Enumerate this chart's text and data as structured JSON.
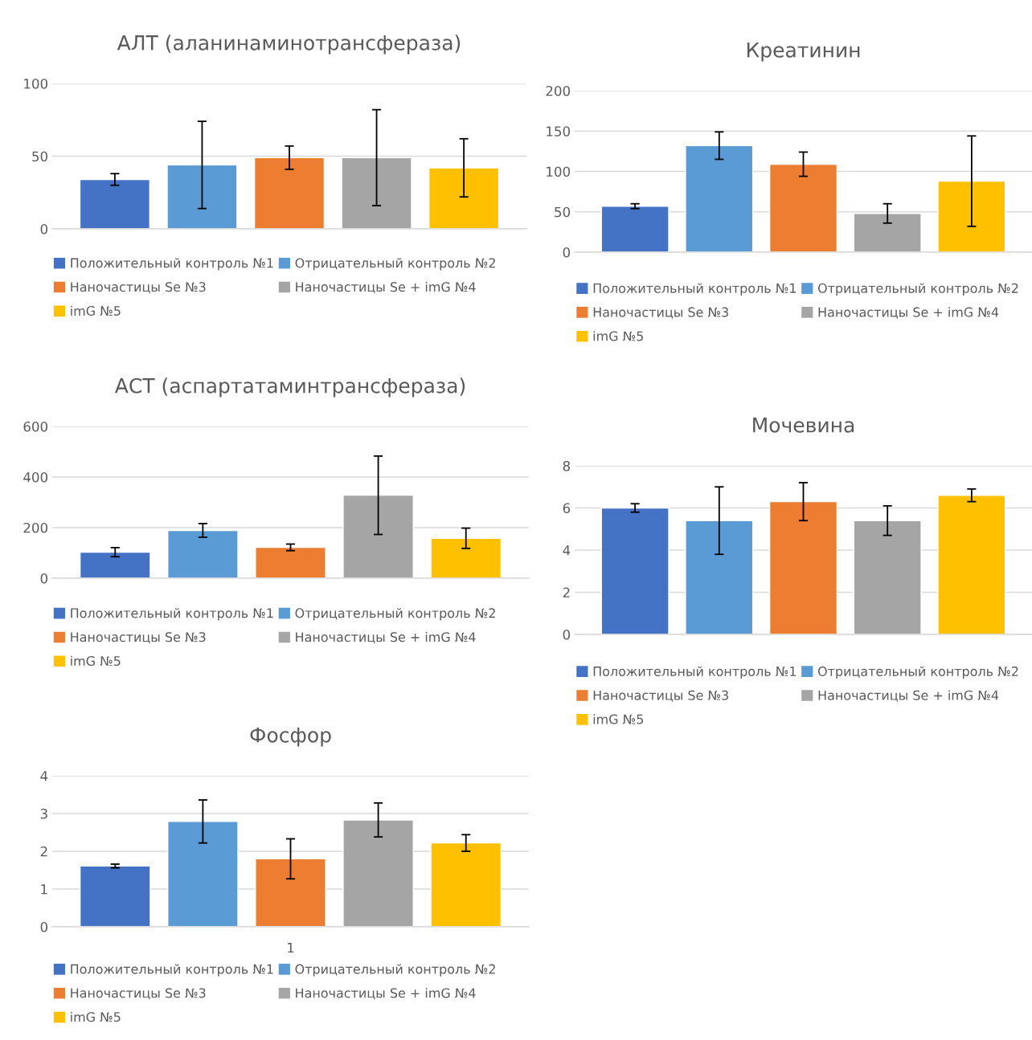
{
  "chart_data": [
    {
      "type": "bar",
      "title": "АЛТ (аланинаминотрансфераза)",
      "categories": [
        null
      ],
      "ylim": [
        0,
        100
      ],
      "yticks": [
        0,
        50,
        100
      ],
      "grid": "y",
      "legend": "bottom",
      "series": [
        {
          "name": "Положительный контроль №1",
          "color": "#4472c4",
          "values": [
            34
          ],
          "errors": [
            4
          ]
        },
        {
          "name": "Отрицательный контроль №2",
          "color": "#5b9bd5",
          "values": [
            44
          ],
          "errors": [
            30
          ]
        },
        {
          "name": "Наночастицы Se №3",
          "color": "#ed7d31",
          "values": [
            49
          ],
          "errors": [
            8
          ]
        },
        {
          "name": "Наночастицы Se + imG №4",
          "color": "#a5a5a5",
          "values": [
            49
          ],
          "errors": [
            33
          ]
        },
        {
          "name": "imG №5",
          "color": "#ffc000",
          "values": [
            42
          ],
          "errors": [
            20
          ]
        }
      ]
    },
    {
      "type": "bar",
      "title": "Креатинин",
      "categories": [
        null
      ],
      "ylim": [
        0,
        200
      ],
      "yticks": [
        0,
        50,
        100,
        150,
        200
      ],
      "grid": "y",
      "legend": "bottom",
      "series": [
        {
          "name": "Положительный контроль №1",
          "color": "#4472c4",
          "values": [
            57
          ],
          "errors": [
            3
          ]
        },
        {
          "name": "Отрицательный контроль №2",
          "color": "#5b9bd5",
          "values": [
            132
          ],
          "errors": [
            17
          ]
        },
        {
          "name": "Наночастицы Se №3",
          "color": "#ed7d31",
          "values": [
            109
          ],
          "errors": [
            15
          ]
        },
        {
          "name": "Наночастицы Se + imG №4",
          "color": "#a5a5a5",
          "values": [
            48
          ],
          "errors": [
            12
          ]
        },
        {
          "name": "imG №5",
          "color": "#ffc000",
          "values": [
            88
          ],
          "errors": [
            56
          ]
        }
      ]
    },
    {
      "type": "bar",
      "title": "АСТ (аспартатаминтрансфераза)",
      "categories": [
        null
      ],
      "ylim": [
        0,
        600
      ],
      "yticks": [
        0,
        200,
        400,
        600
      ],
      "grid": "y",
      "legend": "bottom",
      "series": [
        {
          "name": "Положительный контроль №1",
          "color": "#4472c4",
          "values": [
            103
          ],
          "errors": [
            18
          ]
        },
        {
          "name": "Отрицательный контроль №2",
          "color": "#5b9bd5",
          "values": [
            189
          ],
          "errors": [
            27
          ]
        },
        {
          "name": "Наночастицы Se №3",
          "color": "#ed7d31",
          "values": [
            122
          ],
          "errors": [
            13
          ]
        },
        {
          "name": "Наночастицы Se + imG №4",
          "color": "#a5a5a5",
          "values": [
            328
          ],
          "errors": [
            155
          ]
        },
        {
          "name": "imG №5",
          "color": "#ffc000",
          "values": [
            158
          ],
          "errors": [
            40
          ]
        }
      ]
    },
    {
      "type": "bar",
      "title": "Мочевина",
      "categories": [
        null
      ],
      "ylim": [
        0,
        8
      ],
      "yticks": [
        0,
        2,
        4,
        6,
        8
      ],
      "grid": "y",
      "legend": "bottom",
      "series": [
        {
          "name": "Положительный контроль №1",
          "color": "#4472c4",
          "values": [
            6.0
          ],
          "errors": [
            0.2
          ]
        },
        {
          "name": "Отрицательный контроль №2",
          "color": "#5b9bd5",
          "values": [
            5.4
          ],
          "errors": [
            1.6
          ]
        },
        {
          "name": "Наночастицы Se №3",
          "color": "#ed7d31",
          "values": [
            6.3
          ],
          "errors": [
            0.9
          ]
        },
        {
          "name": "Наночастицы Se + imG №4",
          "color": "#a5a5a5",
          "values": [
            5.4
          ],
          "errors": [
            0.7
          ]
        },
        {
          "name": "imG №5",
          "color": "#ffc000",
          "values": [
            6.6
          ],
          "errors": [
            0.3
          ]
        }
      ]
    },
    {
      "type": "bar",
      "title": "Фосфор",
      "categories": [
        "1"
      ],
      "ylim": [
        0,
        4
      ],
      "yticks": [
        0,
        1,
        2,
        3,
        4
      ],
      "grid": "y",
      "legend": "bottom",
      "series": [
        {
          "name": "Положительный контроль №1",
          "color": "#4472c4",
          "values": [
            1.61
          ],
          "errors": [
            0.05
          ]
        },
        {
          "name": "Отрицательный контроль №2",
          "color": "#5b9bd5",
          "values": [
            2.79
          ],
          "errors": [
            0.57
          ]
        },
        {
          "name": "Наночастицы Se №3",
          "color": "#ed7d31",
          "values": [
            1.8
          ],
          "errors": [
            0.53
          ]
        },
        {
          "name": "Наночастицы Se + imG №4",
          "color": "#a5a5a5",
          "values": [
            2.83
          ],
          "errors": [
            0.45
          ]
        },
        {
          "name": "imG №5",
          "color": "#ffc000",
          "values": [
            2.22
          ],
          "errors": [
            0.22
          ]
        }
      ]
    }
  ]
}
